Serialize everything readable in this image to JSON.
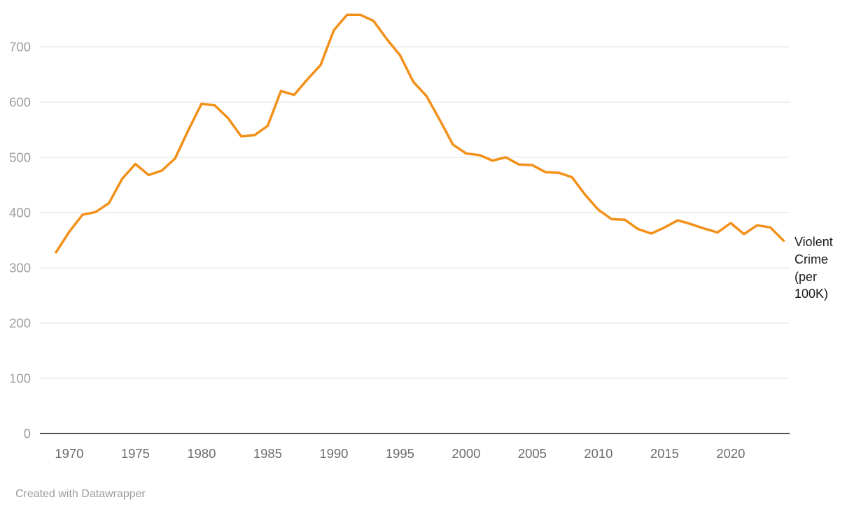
{
  "chart_data": {
    "type": "line",
    "title": "",
    "xlabel": "",
    "ylabel": "",
    "x": [
      1969,
      1970,
      1971,
      1972,
      1973,
      1974,
      1975,
      1976,
      1977,
      1978,
      1979,
      1980,
      1981,
      1982,
      1983,
      1984,
      1985,
      1986,
      1987,
      1988,
      1989,
      1990,
      1991,
      1992,
      1993,
      1994,
      1995,
      1996,
      1997,
      1998,
      1999,
      2000,
      2001,
      2002,
      2003,
      2004,
      2005,
      2006,
      2007,
      2008,
      2009,
      2010,
      2011,
      2012,
      2013,
      2014,
      2015,
      2016,
      2017,
      2018,
      2019,
      2020,
      2021,
      2022,
      2023,
      2024
    ],
    "series": [
      {
        "name": "Violent Crime (per 100K)",
        "values": [
          328,
          365,
          396,
          401,
          417,
          461,
          488,
          468,
          476,
          498,
          549,
          597,
          594,
          571,
          538,
          540,
          557,
          620,
          613,
          641,
          667,
          730,
          758,
          758,
          747,
          714,
          685,
          637,
          611,
          568,
          523,
          507,
          504,
          494,
          500,
          487,
          486,
          473,
          472,
          464,
          432,
          405,
          388,
          387,
          370,
          362,
          373,
          386,
          379,
          371,
          364,
          381,
          361,
          377,
          373,
          349
        ]
      }
    ],
    "ylim": [
      0,
      760
    ],
    "y_ticks": [
      0,
      100,
      200,
      300,
      400,
      500,
      600,
      700
    ],
    "x_ticks": [
      1970,
      1975,
      1980,
      1985,
      1990,
      1995,
      2000,
      2005,
      2010,
      2015,
      2020
    ],
    "grid": "horizontal",
    "legend_position": "right-of-line-end",
    "line_color": "#F39019",
    "gridline_color": "#e0e0e0",
    "axis_line_color": "#1a1a1a",
    "y_tick_color": "#9d9d9d",
    "x_tick_color": "#6d6d6d"
  },
  "footer": {
    "attribution": "Created with Datawrapper"
  }
}
